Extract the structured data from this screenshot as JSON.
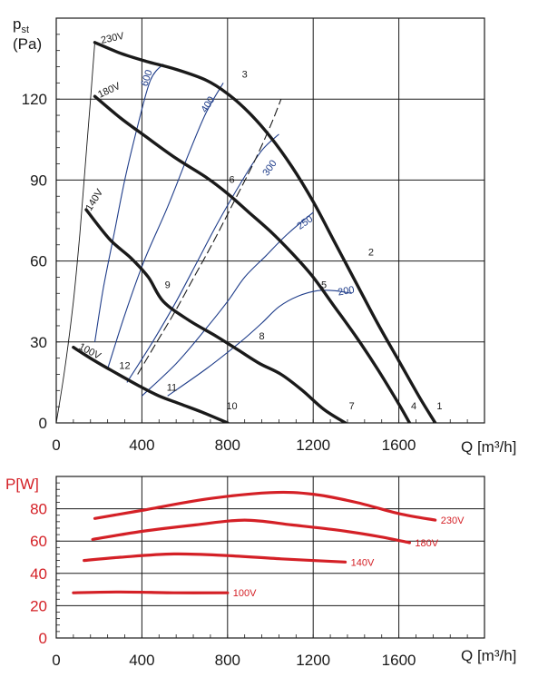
{
  "colors": {
    "black_curve": "#1a1a1a",
    "blue_curve": "#1f3d8a",
    "red_curve": "#d42026",
    "grid": "#1a1a1a"
  },
  "chart_data": [
    {
      "type": "line",
      "title": "",
      "ylabel": "p",
      "ylabel_sub": "st",
      "ylabel_unit": "(Pa)",
      "xlabel": "Q [m³/h]",
      "xlim": [
        0,
        2000
      ],
      "ylim": [
        0,
        150
      ],
      "x_ticks": [
        0,
        400,
        800,
        1200,
        1600
      ],
      "y_ticks": [
        0,
        30,
        60,
        90,
        120
      ],
      "grid": true,
      "series": [
        {
          "name": "230V",
          "x": [
            180,
            300,
            420,
            560,
            700,
            800,
            900,
            1000,
            1100,
            1200,
            1300,
            1400,
            1500,
            1600,
            1700,
            1770
          ],
          "y": [
            141,
            137,
            134,
            131,
            127,
            122,
            115,
            106,
            95,
            82,
            67,
            52,
            37,
            23,
            9,
            0
          ]
        },
        {
          "name": "180V",
          "x": [
            180,
            300,
            420,
            560,
            700,
            800,
            900,
            1000,
            1100,
            1200,
            1300,
            1400,
            1500,
            1600,
            1650
          ],
          "y": [
            121,
            113,
            106,
            98,
            91,
            85,
            78,
            71,
            63,
            54,
            43,
            32,
            20,
            7,
            0
          ]
        },
        {
          "name": "140V",
          "x": [
            140,
            250,
            350,
            430,
            500,
            620,
            750,
            850,
            950,
            1050,
            1150,
            1250,
            1350
          ],
          "y": [
            79,
            68,
            61,
            54,
            45,
            38,
            32,
            27,
            22,
            18,
            12,
            5,
            0
          ]
        },
        {
          "name": "100V",
          "x": [
            80,
            180,
            290,
            380,
            480,
            580,
            680,
            800
          ],
          "y": [
            28,
            23,
            18,
            14,
            10,
            7,
            4,
            0
          ]
        }
      ],
      "dashed_series": [
        {
          "name": "",
          "x": [
            380,
            470,
            560,
            650,
            740,
            830,
            920,
            1000,
            1050
          ],
          "y": [
            18,
            30,
            42,
            55,
            68,
            82,
            96,
            110,
            120
          ]
        }
      ],
      "system_curves": [
        {
          "name": "600",
          "x": [
            180,
            220,
            270,
            320,
            380,
            440,
            500
          ],
          "y": [
            30,
            50,
            70,
            90,
            110,
            127,
            133
          ]
        },
        {
          "name": "400",
          "x": [
            240,
            320,
            410,
            520,
            620,
            700,
            780
          ],
          "y": [
            20,
            40,
            60,
            80,
            100,
            115,
            126
          ]
        },
        {
          "name": "300",
          "x": [
            330,
            450,
            560,
            660,
            760,
            870,
            960,
            1040
          ],
          "y": [
            15,
            30,
            45,
            60,
            75,
            90,
            101,
            107
          ]
        },
        {
          "name": "250",
          "x": [
            400,
            560,
            700,
            800,
            880,
            980,
            1080,
            1200
          ],
          "y": [
            10,
            22,
            35,
            45,
            54,
            62,
            70,
            78
          ]
        },
        {
          "name": "200",
          "x": [
            520,
            700,
            860,
            960,
            1040,
            1130,
            1220,
            1300,
            1380
          ],
          "y": [
            10,
            20,
            30,
            37,
            43,
            47,
            49,
            49,
            48
          ]
        }
      ],
      "left_boundary": {
        "x": [
          0,
          40,
          80,
          110,
          135,
          160,
          180
        ],
        "y": [
          0,
          20,
          45,
          70,
          95,
          120,
          141
        ]
      },
      "point_labels": [
        {
          "label": "1",
          "x": 1790,
          "y": 5
        },
        {
          "label": "2",
          "x": 1470,
          "y": 62
        },
        {
          "label": "3",
          "x": 880,
          "y": 128
        },
        {
          "label": "4",
          "x": 1670,
          "y": 5
        },
        {
          "label": "5",
          "x": 1250,
          "y": 50
        },
        {
          "label": "6",
          "x": 820,
          "y": 89
        },
        {
          "label": "7",
          "x": 1380,
          "y": 5
        },
        {
          "label": "8",
          "x": 960,
          "y": 31
        },
        {
          "label": "9",
          "x": 520,
          "y": 50
        },
        {
          "label": "10",
          "x": 820,
          "y": 5
        },
        {
          "label": "11",
          "x": 540,
          "y": 12
        },
        {
          "label": "12",
          "x": 320,
          "y": 20
        }
      ]
    },
    {
      "type": "line",
      "title": "",
      "ylabel": "P[W]",
      "xlabel": "Q [m³/h]",
      "xlim": [
        0,
        2000
      ],
      "ylim": [
        0,
        100
      ],
      "x_ticks": [
        0,
        400,
        800,
        1200,
        1600
      ],
      "y_ticks": [
        0,
        20,
        40,
        60,
        80
      ],
      "grid": true,
      "series": [
        {
          "name": "230V",
          "x": [
            180,
            400,
            700,
            1000,
            1200,
            1400,
            1600,
            1770
          ],
          "y": [
            74,
            79,
            86,
            90,
            89,
            84,
            77,
            73
          ]
        },
        {
          "name": "180V",
          "x": [
            170,
            400,
            650,
            880,
            1100,
            1300,
            1500,
            1650
          ],
          "y": [
            61,
            66,
            70,
            73,
            70,
            67,
            63,
            59
          ]
        },
        {
          "name": "140V",
          "x": [
            130,
            300,
            550,
            800,
            1050,
            1350
          ],
          "y": [
            48,
            50,
            52,
            51,
            49,
            47
          ]
        },
        {
          "name": "100V",
          "x": [
            80,
            300,
            550,
            800
          ],
          "y": [
            28,
            28.5,
            28,
            28
          ]
        }
      ]
    }
  ]
}
